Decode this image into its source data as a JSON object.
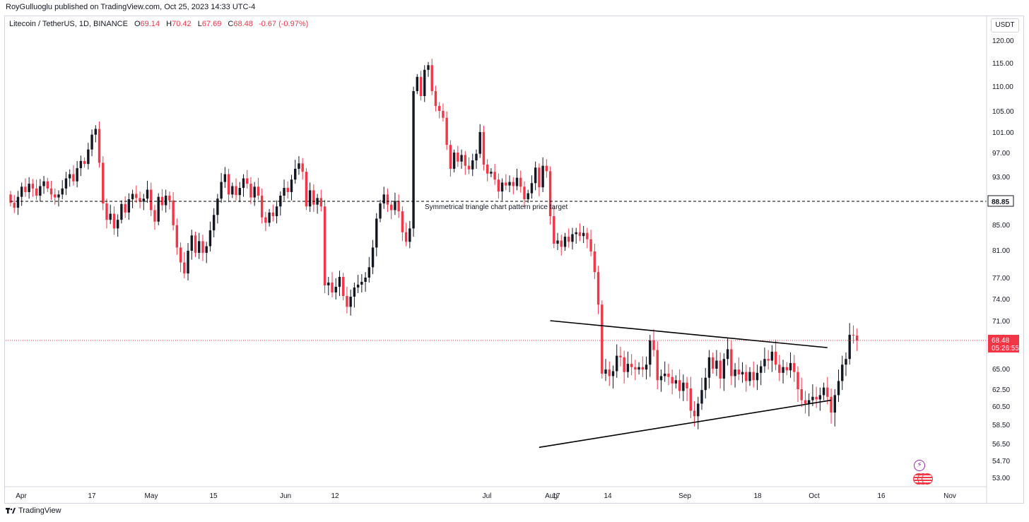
{
  "header": {
    "published_note": "RoyGulluoglu published on TradingView.com, Oct 25, 2023 14:33 UTC-4"
  },
  "legend": {
    "symbol": "Litecoin / TetherUS, 1D, BINANCE",
    "open_label": "O",
    "open": "69.14",
    "high_label": "H",
    "high": "70.42",
    "low_label": "L",
    "low": "67.69",
    "close_label": "C",
    "close": "68.48",
    "change": "-0.67 (-0.97%)"
  },
  "currency_button": {
    "label": "USDT"
  },
  "footer": {
    "brand": "TradingView"
  },
  "colors": {
    "up": "#131722",
    "down": "#f23645",
    "grid_line": "#000000",
    "price_line": "#f23645"
  },
  "chart_data": {
    "type": "candlestick",
    "symbol": "Litecoin / TetherUS",
    "interval": "1D",
    "exchange": "BINANCE",
    "currency": "USDT",
    "y_ticks": [
      "120.00",
      "115.00",
      "110.00",
      "105.00",
      "101.00",
      "97.00",
      "93.00",
      "85.00",
      "81.00",
      "77.00",
      "74.00",
      "71.00",
      "65.00",
      "62.50",
      "60.50",
      "58.50",
      "56.50",
      "54.70",
      "53.00"
    ],
    "x_ticks": [
      {
        "date": "2023-04-01",
        "label": "Apr"
      },
      {
        "date": "2023-04-17",
        "label": "17"
      },
      {
        "date": "2023-05-01",
        "label": "May"
      },
      {
        "date": "2023-05-15",
        "label": "15"
      },
      {
        "date": "2023-06-01",
        "label": "Jun"
      },
      {
        "date": "2023-06-12",
        "label": "12"
      },
      {
        "date": "2023-07-01",
        "label": "Jul"
      },
      {
        "date": "2023-07-17",
        "label": "17"
      },
      {
        "date": "2023-08-01",
        "label": "Aug"
      },
      {
        "date": "2023-08-14",
        "label": "14"
      },
      {
        "date": "2023-09-01",
        "label": "Sep"
      },
      {
        "date": "2023-09-18",
        "label": "18"
      },
      {
        "date": "2023-10-01",
        "label": "Oct"
      },
      {
        "date": "2023-10-16",
        "label": "16"
      },
      {
        "date": "2023-11-01",
        "label": "Nov"
      }
    ],
    "last_price": {
      "value": 68.48,
      "label": "68.48",
      "countdown": "05:26:55"
    },
    "target_line": {
      "value": 88.85,
      "label": "88.85",
      "start_date": "2023-03-26",
      "annotation": "Symmetrical triangle chart pattern price target"
    },
    "trend_lines": [
      {
        "name": "upper",
        "from": {
          "date": "2023-08-19",
          "value": 71.0
        },
        "to": {
          "date": "2023-11-02",
          "value": 67.6
        }
      },
      {
        "name": "lower",
        "from": {
          "date": "2023-08-16",
          "value": 56.1
        },
        "to": {
          "date": "2023-11-03",
          "value": 61.2
        }
      }
    ],
    "candles": [
      [
        "2023-03-26",
        90.0,
        88.6
      ],
      [
        "2023-03-27",
        88.6,
        87.8
      ],
      [
        "2023-03-28",
        87.8,
        89.6
      ],
      [
        "2023-03-29",
        89.6,
        91.3
      ],
      [
        "2023-03-30",
        91.3,
        90.4
      ],
      [
        "2023-03-31",
        90.4,
        91.8
      ],
      [
        "2023-04-01",
        91.8,
        91.0
      ],
      [
        "2023-04-02",
        91.0,
        89.8
      ],
      [
        "2023-04-03",
        89.8,
        91.4
      ],
      [
        "2023-04-04",
        91.4,
        92.2
      ],
      [
        "2023-04-05",
        92.2,
        91.0
      ],
      [
        "2023-04-06",
        91.0,
        90.0
      ],
      [
        "2023-04-07",
        90.0,
        89.5
      ],
      [
        "2023-04-08",
        89.5,
        90.0
      ],
      [
        "2023-04-09",
        90.0,
        91.0
      ],
      [
        "2023-04-10",
        91.0,
        92.7
      ],
      [
        "2023-04-11",
        92.7,
        93.4
      ],
      [
        "2023-04-12",
        93.4,
        92.2
      ],
      [
        "2023-04-13",
        92.2,
        94.4
      ],
      [
        "2023-04-14",
        94.4,
        95.6
      ],
      [
        "2023-04-15",
        95.6,
        95.1
      ],
      [
        "2023-04-16",
        95.1,
        97.6
      ],
      [
        "2023-04-17",
        97.6,
        100.5
      ],
      [
        "2023-04-18",
        100.5,
        101.6
      ],
      [
        "2023-04-19",
        101.6,
        95.3
      ],
      [
        "2023-04-20",
        95.3,
        88.5
      ],
      [
        "2023-04-21",
        88.5,
        85.8
      ],
      [
        "2023-04-22",
        85.8,
        86.8
      ],
      [
        "2023-04-23",
        86.8,
        84.4
      ],
      [
        "2023-04-24",
        84.4,
        85.8
      ],
      [
        "2023-04-25",
        85.8,
        88.4
      ],
      [
        "2023-04-26",
        88.4,
        87.0
      ],
      [
        "2023-04-27",
        87.0,
        89.2
      ],
      [
        "2023-04-28",
        89.2,
        90.1
      ],
      [
        "2023-04-29",
        90.1,
        89.4
      ],
      [
        "2023-04-30",
        89.4,
        88.8
      ],
      [
        "2023-05-01",
        88.8,
        89.3
      ],
      [
        "2023-05-02",
        89.3,
        90.8
      ],
      [
        "2023-05-03",
        90.8,
        87.4
      ],
      [
        "2023-05-04",
        87.4,
        85.5
      ],
      [
        "2023-05-05",
        85.5,
        89.6
      ],
      [
        "2023-05-06",
        89.6,
        88.2
      ],
      [
        "2023-05-07",
        88.2,
        89.8
      ],
      [
        "2023-05-08",
        89.8,
        89.0
      ],
      [
        "2023-05-09",
        89.0,
        84.9
      ],
      [
        "2023-05-10",
        84.9,
        81.4
      ],
      [
        "2023-05-11",
        81.4,
        79.2
      ],
      [
        "2023-05-12",
        79.2,
        77.6
      ],
      [
        "2023-05-13",
        77.6,
        80.9
      ],
      [
        "2023-05-14",
        80.9,
        83.3
      ],
      [
        "2023-05-15",
        83.3,
        80.6
      ],
      [
        "2023-05-16",
        80.6,
        82.4
      ],
      [
        "2023-05-17",
        82.4,
        80.6
      ],
      [
        "2023-05-18",
        80.6,
        81.6
      ],
      [
        "2023-05-19",
        81.6,
        84.1
      ],
      [
        "2023-05-20",
        84.1,
        86.6
      ],
      [
        "2023-05-21",
        86.6,
        89.3
      ],
      [
        "2023-05-22",
        89.3,
        92.1
      ],
      [
        "2023-05-23",
        92.1,
        93.4
      ],
      [
        "2023-05-24",
        93.4,
        90.0
      ],
      [
        "2023-05-25",
        90.0,
        91.4
      ],
      [
        "2023-05-26",
        91.4,
        89.9
      ],
      [
        "2023-05-27",
        89.9,
        91.1
      ],
      [
        "2023-05-28",
        91.1,
        92.7
      ],
      [
        "2023-05-29",
        92.7,
        91.8
      ],
      [
        "2023-05-30",
        91.8,
        89.5
      ],
      [
        "2023-05-31",
        89.5,
        91.3
      ],
      [
        "2023-06-01",
        91.3,
        89.8
      ],
      [
        "2023-06-02",
        89.8,
        86.2
      ],
      [
        "2023-06-03",
        86.2,
        85.3
      ],
      [
        "2023-06-04",
        85.3,
        87.0
      ],
      [
        "2023-06-05",
        87.0,
        86.4
      ],
      [
        "2023-06-06",
        86.4,
        88.0
      ],
      [
        "2023-06-07",
        88.0,
        89.8
      ],
      [
        "2023-06-08",
        89.8,
        91.1
      ],
      [
        "2023-06-09",
        91.1,
        90.4
      ],
      [
        "2023-06-10",
        90.4,
        92.5
      ],
      [
        "2023-06-11",
        92.5,
        94.3
      ],
      [
        "2023-06-12",
        94.3,
        95.2
      ],
      [
        "2023-06-13",
        95.2,
        93.8
      ],
      [
        "2023-06-14",
        93.8,
        88.0
      ],
      [
        "2023-06-15",
        88.0,
        90.7
      ],
      [
        "2023-06-16",
        90.7,
        88.3
      ],
      [
        "2023-06-17",
        88.3,
        89.4
      ],
      [
        "2023-06-18",
        89.4,
        88.0
      ],
      [
        "2023-06-19",
        88.0,
        75.9
      ],
      [
        "2023-06-20",
        75.9,
        76.3
      ],
      [
        "2023-06-21",
        76.3,
        74.9
      ],
      [
        "2023-06-22",
        74.9,
        75.7
      ],
      [
        "2023-06-23",
        75.7,
        77.1
      ],
      [
        "2023-06-24",
        77.1,
        74.4
      ],
      [
        "2023-06-25",
        74.4,
        72.9
      ],
      [
        "2023-06-26",
        72.9,
        74.3
      ],
      [
        "2023-06-27",
        74.3,
        75.6
      ],
      [
        "2023-06-28",
        75.6,
        76.0
      ],
      [
        "2023-06-29",
        76.0,
        76.4
      ],
      [
        "2023-06-30",
        76.4,
        77.0
      ],
      [
        "2023-07-01",
        77.0,
        78.5
      ],
      [
        "2023-07-02",
        78.5,
        81.4
      ],
      [
        "2023-07-03",
        81.4,
        86.0
      ],
      [
        "2023-07-04",
        86.0,
        88.5
      ],
      [
        "2023-07-05",
        88.5,
        90.0
      ],
      [
        "2023-07-06",
        90.0,
        88.3
      ],
      [
        "2023-07-07",
        88.3,
        87.4
      ],
      [
        "2023-07-08",
        87.4,
        88.9
      ],
      [
        "2023-07-09",
        88.9,
        87.2
      ],
      [
        "2023-07-10",
        87.2,
        83.8
      ],
      [
        "2023-07-11",
        83.8,
        82.3
      ],
      [
        "2023-07-12",
        82.3,
        84.4
      ],
      [
        "2023-07-13",
        84.4,
        109.0
      ],
      [
        "2023-07-14",
        109.0,
        112.0
      ],
      [
        "2023-07-15",
        112.0,
        108.0
      ],
      [
        "2023-07-16",
        108.0,
        113.5
      ],
      [
        "2023-07-17",
        113.5,
        114.5
      ],
      [
        "2023-07-18",
        114.5,
        109.0
      ],
      [
        "2023-07-19",
        109.0,
        106.0
      ],
      [
        "2023-07-20",
        106.0,
        105.0
      ],
      [
        "2023-07-21",
        105.0,
        103.7
      ],
      [
        "2023-07-22",
        103.7,
        98.5
      ],
      [
        "2023-07-23",
        98.5,
        94.3
      ],
      [
        "2023-07-24",
        94.3,
        97.0
      ],
      [
        "2023-07-25",
        97.0,
        95.5
      ],
      [
        "2023-07-26",
        95.5,
        96.6
      ],
      [
        "2023-07-27",
        96.6,
        94.8
      ],
      [
        "2023-07-28",
        94.8,
        94.2
      ],
      [
        "2023-07-29",
        94.2,
        95.7
      ],
      [
        "2023-07-30",
        95.7,
        96.8
      ],
      [
        "2023-07-31",
        96.8,
        101.0
      ],
      [
        "2023-08-01",
        101.0,
        95.0
      ],
      [
        "2023-08-02",
        95.0,
        93.5
      ],
      [
        "2023-08-03",
        93.5,
        93.8
      ],
      [
        "2023-08-04",
        93.8,
        92.5
      ],
      [
        "2023-08-05",
        92.5,
        90.5
      ],
      [
        "2023-08-06",
        90.5,
        92.0
      ],
      [
        "2023-08-07",
        92.0,
        91.5
      ],
      [
        "2023-08-08",
        91.5,
        92.1
      ],
      [
        "2023-08-09",
        92.1,
        91.4
      ],
      [
        "2023-08-10",
        91.4,
        92.8
      ],
      [
        "2023-08-11",
        92.8,
        91.3
      ],
      [
        "2023-08-12",
        91.3,
        89.2
      ],
      [
        "2023-08-13",
        89.2,
        90.2
      ],
      [
        "2023-08-14",
        90.2,
        91.9
      ],
      [
        "2023-08-15",
        91.9,
        94.5
      ],
      [
        "2023-08-16",
        94.5,
        91.2
      ],
      [
        "2023-08-17",
        91.2,
        94.8
      ],
      [
        "2023-08-18",
        94.8,
        93.9
      ],
      [
        "2023-08-19",
        93.9,
        86.4
      ],
      [
        "2023-08-20",
        86.4,
        82.0
      ],
      [
        "2023-08-21",
        82.0,
        82.5
      ],
      [
        "2023-08-22",
        82.5,
        81.5
      ],
      [
        "2023-08-23",
        81.5,
        83.1
      ],
      [
        "2023-08-24",
        83.1,
        82.3
      ],
      [
        "2023-08-25",
        82.3,
        83.5
      ],
      [
        "2023-08-26",
        83.5,
        83.8
      ],
      [
        "2023-08-27",
        83.8,
        83.2
      ],
      [
        "2023-08-28",
        83.2,
        83.7
      ],
      [
        "2023-08-29",
        83.7,
        82.7
      ],
      [
        "2023-08-30",
        82.7,
        80.8
      ],
      [
        "2023-08-31",
        80.8,
        77.8
      ],
      [
        "2023-09-01",
        77.8,
        73.2
      ],
      [
        "2023-09-02",
        73.2,
        64.4
      ],
      [
        "2023-09-03",
        64.4,
        64.9
      ],
      [
        "2023-09-04",
        64.9,
        64.1
      ],
      [
        "2023-09-05",
        64.1,
        64.7
      ],
      [
        "2023-09-06",
        64.7,
        66.6
      ],
      [
        "2023-09-07",
        66.6,
        66.4
      ],
      [
        "2023-09-08",
        66.4,
        64.6
      ],
      [
        "2023-09-09",
        64.6,
        65.6
      ],
      [
        "2023-09-10",
        65.6,
        65.2
      ],
      [
        "2023-09-11",
        65.2,
        64.9
      ],
      [
        "2023-09-12",
        64.9,
        65.2
      ],
      [
        "2023-09-13",
        65.2,
        64.9
      ],
      [
        "2023-09-14",
        64.9,
        65.5
      ],
      [
        "2023-09-15",
        65.5,
        68.5
      ],
      [
        "2023-09-16",
        68.5,
        67.3
      ],
      [
        "2023-09-17",
        67.3,
        63.6
      ],
      [
        "2023-09-18",
        63.6,
        64.1
      ],
      [
        "2023-09-19",
        64.1,
        64.4
      ],
      [
        "2023-09-20",
        64.4,
        64.0
      ],
      [
        "2023-09-21",
        64.0,
        63.2
      ],
      [
        "2023-09-22",
        63.2,
        63.6
      ],
      [
        "2023-09-23",
        63.6,
        62.3
      ],
      [
        "2023-09-24",
        62.3,
        63.3
      ],
      [
        "2023-09-25",
        63.3,
        62.6
      ],
      [
        "2023-09-26",
        62.6,
        60.0
      ],
      [
        "2023-09-27",
        60.0,
        59.4
      ],
      [
        "2023-09-28",
        59.4,
        60.8
      ],
      [
        "2023-09-29",
        60.8,
        62.4
      ],
      [
        "2023-09-30",
        62.4,
        63.9
      ],
      [
        "2023-10-01",
        63.9,
        66.4
      ],
      [
        "2023-10-02",
        66.4,
        65.0
      ],
      [
        "2023-10-03",
        65.0,
        66.0
      ],
      [
        "2023-10-04",
        66.0,
        63.8
      ],
      [
        "2023-10-05",
        63.8,
        66.2
      ],
      [
        "2023-10-06",
        66.2,
        67.4
      ],
      [
        "2023-10-07",
        67.4,
        64.1
      ],
      [
        "2023-10-08",
        64.1,
        64.9
      ],
      [
        "2023-10-09",
        64.9,
        64.3
      ],
      [
        "2023-10-10",
        64.3,
        64.6
      ],
      [
        "2023-10-11",
        64.6,
        63.5
      ],
      [
        "2023-10-12",
        63.5,
        64.6
      ],
      [
        "2023-10-13",
        64.6,
        63.6
      ],
      [
        "2023-10-14",
        63.6,
        64.5
      ],
      [
        "2023-10-15",
        64.5,
        65.3
      ],
      [
        "2023-10-16",
        65.3,
        66.2
      ],
      [
        "2023-10-17",
        66.2,
        66.0
      ],
      [
        "2023-10-18",
        66.0,
        67.1
      ],
      [
        "2023-10-19",
        67.1,
        65.5
      ],
      [
        "2023-10-20",
        65.5,
        64.5
      ],
      [
        "2023-10-21",
        64.5,
        65.2
      ],
      [
        "2023-10-22",
        65.2,
        64.8
      ],
      [
        "2023-10-23",
        64.8,
        65.7
      ],
      [
        "2023-10-24",
        65.7,
        64.6
      ],
      [
        "2023-10-25",
        64.6,
        62.5
      ],
      [
        "2023-10-26",
        62.5,
        61.2
      ],
      [
        "2023-10-27",
        61.2,
        60.8
      ],
      [
        "2023-10-28",
        60.8,
        61.2
      ],
      [
        "2023-10-29",
        61.2,
        61.6
      ],
      [
        "2023-10-30",
        61.6,
        61.3
      ],
      [
        "2023-10-31",
        61.3,
        61.8
      ],
      [
        "2023-11-01",
        61.8,
        62.7
      ],
      [
        "2023-11-02",
        62.7,
        61.6
      ],
      [
        "2023-11-03",
        61.6,
        59.8
      ],
      [
        "2023-11-04",
        59.8,
        61.8
      ],
      [
        "2023-11-05",
        61.8,
        63.5
      ],
      [
        "2023-11-06",
        63.5,
        65.5
      ],
      [
        "2023-11-07",
        65.5,
        66.2
      ],
      [
        "2023-11-08",
        66.2,
        69.2
      ],
      [
        "2023-11-09",
        69.2,
        69.1
      ],
      [
        "2023-11-10",
        69.1,
        68.48
      ]
    ]
  }
}
